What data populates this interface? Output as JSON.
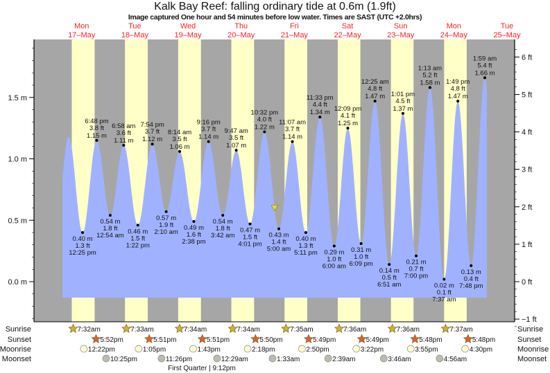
{
  "chart_data": {
    "type": "area",
    "title": "Kalk Bay Reef: falling  ordinary tide at 0.6m (1.9ft)",
    "subtitle": "Image captured One hour and 54 minutes before low water. Times are SAST (UTC +2.0hrs)",
    "y_left": {
      "unit": "m",
      "ylim": [
        -0.33,
        1.97
      ],
      "ticks": [
        {
          "v": 0.0,
          "label": "0.0 m"
        },
        {
          "v": 0.5,
          "label": "0.5 m"
        },
        {
          "v": 1.0,
          "label": "1.0 m"
        },
        {
          "v": 1.5,
          "label": "1.5 m"
        }
      ]
    },
    "y_right": {
      "unit": "ft",
      "ticks": [
        {
          "v": -1,
          "label": "−1 ft"
        },
        {
          "v": 0,
          "label": "0 ft"
        },
        {
          "v": 1,
          "label": "1 ft"
        },
        {
          "v": 2,
          "label": "2 ft"
        },
        {
          "v": 3,
          "label": "3 ft"
        },
        {
          "v": 4,
          "label": "4 ft"
        },
        {
          "v": 5,
          "label": "5 ft"
        },
        {
          "v": 6,
          "label": "6 ft"
        }
      ]
    },
    "days": [
      {
        "name": "Mon",
        "date": "17–May"
      },
      {
        "name": "Tue",
        "date": "18–May"
      },
      {
        "name": "Wed",
        "date": "19–May"
      },
      {
        "name": "Thu",
        "date": "20–May"
      },
      {
        "name": "Fri",
        "date": "21–May"
      },
      {
        "name": "Sat",
        "date": "22–May"
      },
      {
        "name": "Sun",
        "date": "23–May"
      },
      {
        "name": "Mon",
        "date": "24–May"
      },
      {
        "name": "Tue",
        "date": "25–May"
      }
    ],
    "x_range_days_from_17May": [
      -0.4,
      8.6
    ],
    "curve_extrapolation": [
      {
        "day": -0.004,
        "m": 0.36
      },
      {
        "day": 0.256,
        "m": 1.18
      },
      {
        "day": 8.34,
        "m": 0.05
      }
    ],
    "curve_span_days": [
      0.138,
      8.12
    ],
    "extremes": [
      {
        "type": "low",
        "day": 0,
        "time": "12:25 pm",
        "m": "0.40 m",
        "ft": "1.3 ft",
        "v": 0.4
      },
      {
        "type": "high",
        "day": 0,
        "time": "6:48 pm",
        "m": "1.15 m",
        "ft": "3.8 ft",
        "v": 1.15
      },
      {
        "type": "low",
        "day": 1,
        "time": "12:54 am",
        "m": "0.54 m",
        "ft": "1.8 ft",
        "v": 0.54
      },
      {
        "type": "high",
        "day": 1,
        "time": "6:58 am",
        "m": "1.11 m",
        "ft": "3.6 ft",
        "v": 1.11
      },
      {
        "type": "low",
        "day": 1,
        "time": "1:22 pm",
        "m": "0.46 m",
        "ft": "1.5 ft",
        "v": 0.46
      },
      {
        "type": "high",
        "day": 1,
        "time": "7:54 pm",
        "m": "1.12 m",
        "ft": "3.7 ft",
        "v": 1.12
      },
      {
        "type": "low",
        "day": 2,
        "time": "2:10 am",
        "m": "0.57 m",
        "ft": "1.9 ft",
        "v": 0.57
      },
      {
        "type": "high",
        "day": 2,
        "time": "8:14 am",
        "m": "1.06 m",
        "ft": "3.5 ft",
        "v": 1.06
      },
      {
        "type": "low",
        "day": 2,
        "time": "2:38 pm",
        "m": "0.49 m",
        "ft": "1.6 ft",
        "v": 0.49
      },
      {
        "type": "high",
        "day": 2,
        "time": "9:16 pm",
        "m": "1.14 m",
        "ft": "3.7 ft",
        "v": 1.14
      },
      {
        "type": "low",
        "day": 3,
        "time": "3:42 am",
        "m": "0.54 m",
        "ft": "1.8 ft",
        "v": 0.54
      },
      {
        "type": "high",
        "day": 3,
        "time": "9:47 am",
        "m": "1.07 m",
        "ft": "3.5 ft",
        "v": 1.07
      },
      {
        "type": "low",
        "day": 3,
        "time": "4:01 pm",
        "m": "0.47 m",
        "ft": "1.5 ft",
        "v": 0.47
      },
      {
        "type": "high",
        "day": 3,
        "time": "10:32 pm",
        "m": "1.22 m",
        "ft": "4.0 ft",
        "v": 1.22
      },
      {
        "type": "low",
        "day": 4,
        "time": "5:00 am",
        "m": "0.43 m",
        "ft": "1.4 ft",
        "v": 0.43
      },
      {
        "type": "high",
        "day": 4,
        "time": "11:07 am",
        "m": "1.14 m",
        "ft": "3.7 ft",
        "v": 1.14
      },
      {
        "type": "low",
        "day": 4,
        "time": "5:11 pm",
        "m": "0.40 m",
        "ft": "1.3 ft",
        "v": 0.4
      },
      {
        "type": "high",
        "day": 4,
        "time": "11:33 pm",
        "m": "1.34 m",
        "ft": "4.4 ft",
        "v": 1.34
      },
      {
        "type": "low",
        "day": 5,
        "time": "6:00 am",
        "m": "0.29 m",
        "ft": "1.0 ft",
        "v": 0.29
      },
      {
        "type": "high",
        "day": 5,
        "time": "12:09 pm",
        "m": "1.25 m",
        "ft": "4.1 ft",
        "v": 1.25
      },
      {
        "type": "low",
        "day": 5,
        "time": "6:09 pm",
        "m": "0.31 m",
        "ft": "1.0 ft",
        "v": 0.31
      },
      {
        "type": "high",
        "day": 6,
        "time": "12:25 am",
        "m": "1.47 m",
        "ft": "4.8 ft",
        "v": 1.47
      },
      {
        "type": "low",
        "day": 6,
        "time": "6:51 am",
        "m": "0.14 m",
        "ft": "0.5 ft",
        "v": 0.14
      },
      {
        "type": "high",
        "day": 6,
        "time": "1:01 pm",
        "m": "1.37 m",
        "ft": "4.5 ft",
        "v": 1.37
      },
      {
        "type": "low",
        "day": 6,
        "time": "7:00 pm",
        "m": "0.21 m",
        "ft": "0.7 ft",
        "v": 0.21
      },
      {
        "type": "high",
        "day": 7,
        "time": "1:13 am",
        "m": "1.58 m",
        "ft": "5.2 ft",
        "v": 1.58
      },
      {
        "type": "low",
        "day": 7,
        "time": "7:37 am",
        "m": "0.02 m",
        "ft": "0.1 ft",
        "v": 0.02
      },
      {
        "type": "high",
        "day": 7,
        "time": "1:49 pm",
        "m": "1.47 m",
        "ft": "4.8 ft",
        "v": 1.47
      },
      {
        "type": "low",
        "day": 7,
        "time": "7:48 pm",
        "m": "0.13 m",
        "ft": "0.4 ft",
        "v": 0.13
      },
      {
        "type": "high",
        "day": 8,
        "time": "1:59 am",
        "m": "1.66 m",
        "ft": "5.4 ft",
        "v": 1.66
      }
    ],
    "current": {
      "day": 4,
      "time": "3:06 am",
      "m": 0.6
    },
    "rows": {
      "labels": {
        "sunrise": "Sunrise",
        "sunset": "Sunset",
        "moonrise": "Moonrise",
        "moonset": "Moonset"
      },
      "sunrise": [
        {
          "day": 0,
          "time": "7:32am"
        },
        {
          "day": 1,
          "time": "7:33am"
        },
        {
          "day": 2,
          "time": "7:34am"
        },
        {
          "day": 3,
          "time": "7:34am"
        },
        {
          "day": 4,
          "time": "7:35am"
        },
        {
          "day": 5,
          "time": "7:36am"
        },
        {
          "day": 6,
          "time": "7:36am"
        },
        {
          "day": 7,
          "time": "7:37am"
        }
      ],
      "sunset": [
        {
          "day": 0,
          "time": "5:52pm"
        },
        {
          "day": 1,
          "time": "5:51pm"
        },
        {
          "day": 2,
          "time": "5:51pm"
        },
        {
          "day": 3,
          "time": "5:50pm"
        },
        {
          "day": 4,
          "time": "5:49pm"
        },
        {
          "day": 5,
          "time": "5:49pm"
        },
        {
          "day": 6,
          "time": "5:48pm"
        },
        {
          "day": 7,
          "time": "5:48pm"
        }
      ],
      "moonrise": [
        {
          "day": 0,
          "time": "12:22pm"
        },
        {
          "day": 1,
          "time": "1:05pm"
        },
        {
          "day": 2,
          "time": "1:43pm"
        },
        {
          "day": 3,
          "time": "2:18pm"
        },
        {
          "day": 4,
          "time": "2:50pm"
        },
        {
          "day": 5,
          "time": "3:22pm"
        },
        {
          "day": 6,
          "time": "3:55pm"
        },
        {
          "day": 7,
          "time": "4:30pm"
        }
      ],
      "moonset": [
        {
          "day": 0,
          "time": "10:25pm"
        },
        {
          "day": 1,
          "time": "11:26pm"
        },
        {
          "day": 3,
          "time": "12:29am"
        },
        {
          "day": 4,
          "time": "1:33am"
        },
        {
          "day": 5,
          "time": "2:39am"
        },
        {
          "day": 6,
          "time": "3:46am"
        },
        {
          "day": 7,
          "time": "4:56am"
        }
      ],
      "moon_phase": "First Quarter | 9:12pm"
    },
    "colors": {
      "night": "#a6a6a6",
      "day": "#ffffc8",
      "water": "#a0b2ff",
      "day_label": "#ff2020",
      "sunrise": "#c8b432",
      "sunset": "#e0602a",
      "moonrise": "#fffcd0",
      "moonset": "#bcbcae",
      "marker": "#e6d830"
    }
  }
}
